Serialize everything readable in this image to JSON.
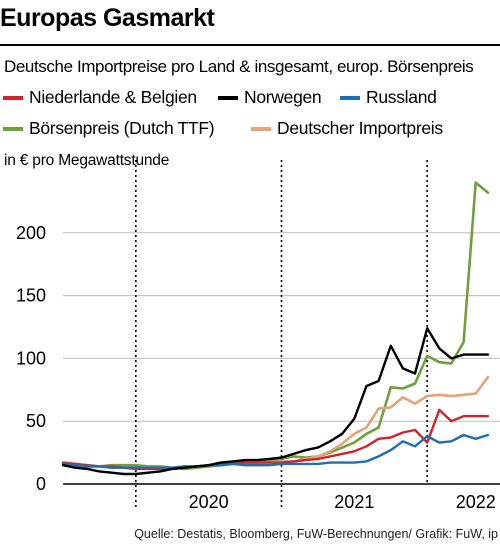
{
  "header": {
    "title": "Europas Gasmarkt",
    "subtitle": "Deutsche Importpreise pro Land & insgesamt, europ. Börsenpreis",
    "unit_label": "in € pro Megawattstunde",
    "source": "Quelle: Destatis, Bloomberg, FuW-Berechnungen/ Grafik: FuW, ip"
  },
  "legend": [
    {
      "label": "Niederlande & Belgien",
      "color": "#d2232a"
    },
    {
      "label": "Norwegen",
      "color": "#000000"
    },
    {
      "label": "Russland",
      "color": "#1b6fb3"
    },
    {
      "label": "Börsenpreis (Dutch TTF)",
      "color": "#6fa03c"
    },
    {
      "label": "Deutscher Importpreis",
      "color": "#e7a37a"
    }
  ],
  "chart_data": {
    "type": "line",
    "x_unit": "month",
    "xlim": [
      "2019-07",
      "2022-07"
    ],
    "ylim": [
      0,
      250
    ],
    "yticks": [
      0,
      50,
      100,
      150,
      200
    ],
    "xtick_labels": [
      "2020",
      "2021",
      "2022"
    ],
    "year_dividers": [
      "2020-01",
      "2021-01",
      "2022-01"
    ],
    "grid": "horizontal",
    "series": [
      {
        "name": "Börsenpreis (Dutch TTF)",
        "color": "#6fa03c",
        "width": 2.6,
        "x": [
          "2019-07",
          "2019-08",
          "2019-09",
          "2019-10",
          "2019-11",
          "2019-12",
          "2020-01",
          "2020-02",
          "2020-03",
          "2020-04",
          "2020-05",
          "2020-06",
          "2020-07",
          "2020-08",
          "2020-09",
          "2020-10",
          "2020-11",
          "2020-12",
          "2021-01",
          "2021-02",
          "2021-03",
          "2021-04",
          "2021-05",
          "2021-06",
          "2021-07",
          "2021-08",
          "2021-09",
          "2021-10",
          "2021-11",
          "2021-12",
          "2022-01",
          "2022-02",
          "2022-03",
          "2022-04",
          "2022-05",
          "2022-06"
        ],
        "y": [
          16,
          15,
          14,
          14,
          15,
          15,
          15,
          14,
          14,
          13,
          12,
          13,
          14,
          15,
          16,
          16,
          17,
          18,
          20,
          22,
          21,
          22,
          25,
          29,
          33,
          40,
          45,
          77,
          76,
          80,
          102,
          97,
          96,
          113,
          240,
          232
        ]
      },
      {
        "name": "Deutscher Importpreis",
        "color": "#e7a37a",
        "width": 2.6,
        "x": [
          "2019-07",
          "2019-08",
          "2019-09",
          "2019-10",
          "2019-11",
          "2019-12",
          "2020-01",
          "2020-02",
          "2020-03",
          "2020-04",
          "2020-05",
          "2020-06",
          "2020-07",
          "2020-08",
          "2020-09",
          "2020-10",
          "2020-11",
          "2020-12",
          "2021-01",
          "2021-02",
          "2021-03",
          "2021-04",
          "2021-05",
          "2021-06",
          "2021-07",
          "2021-08",
          "2021-09",
          "2021-10",
          "2021-11",
          "2021-12",
          "2022-01",
          "2022-02",
          "2022-03",
          "2022-04",
          "2022-05",
          "2022-06"
        ],
        "y": [
          17,
          16,
          15,
          14,
          13,
          13,
          13,
          13,
          13,
          13,
          14,
          14,
          15,
          16,
          17,
          17,
          17,
          17,
          18,
          18,
          20,
          22,
          26,
          32,
          40,
          45,
          60,
          61,
          69,
          64,
          70,
          71,
          70,
          71,
          72,
          85
        ]
      },
      {
        "name": "Niederlande & Belgien",
        "color": "#d2232a",
        "width": 2.4,
        "x": [
          "2019-07",
          "2019-08",
          "2019-09",
          "2019-10",
          "2019-11",
          "2019-12",
          "2020-01",
          "2020-02",
          "2020-03",
          "2020-04",
          "2020-05",
          "2020-06",
          "2020-07",
          "2020-08",
          "2020-09",
          "2020-10",
          "2020-11",
          "2020-12",
          "2021-01",
          "2021-02",
          "2021-03",
          "2021-04",
          "2021-05",
          "2021-06",
          "2021-07",
          "2021-08",
          "2021-09",
          "2021-10",
          "2021-11",
          "2021-12",
          "2022-01",
          "2022-02",
          "2022-03",
          "2022-04",
          "2022-05",
          "2022-06"
        ],
        "y": [
          17,
          16,
          15,
          14,
          14,
          13,
          12,
          12,
          12,
          12,
          13,
          14,
          15,
          16,
          16,
          17,
          17,
          17,
          17,
          18,
          19,
          20,
          22,
          24,
          26,
          30,
          36,
          37,
          41,
          43,
          33,
          59,
          50,
          54,
          54,
          54
        ]
      },
      {
        "name": "Russland",
        "color": "#1b6fb3",
        "width": 2.4,
        "x": [
          "2019-07",
          "2019-08",
          "2019-09",
          "2019-10",
          "2019-11",
          "2019-12",
          "2020-01",
          "2020-02",
          "2020-03",
          "2020-04",
          "2020-05",
          "2020-06",
          "2020-07",
          "2020-08",
          "2020-09",
          "2020-10",
          "2020-11",
          "2020-12",
          "2021-01",
          "2021-02",
          "2021-03",
          "2021-04",
          "2021-05",
          "2021-06",
          "2021-07",
          "2021-08",
          "2021-09",
          "2021-10",
          "2021-11",
          "2021-12",
          "2022-01",
          "2022-02",
          "2022-03",
          "2022-04",
          "2022-05",
          "2022-06"
        ],
        "y": [
          16,
          15,
          14,
          14,
          13,
          13,
          13,
          13,
          13,
          13,
          14,
          14,
          15,
          15,
          16,
          15,
          15,
          15,
          16,
          16,
          16,
          16,
          17,
          17,
          17,
          18,
          22,
          27,
          34,
          30,
          38,
          33,
          34,
          39,
          36,
          39
        ]
      },
      {
        "name": "Norwegen",
        "color": "#000000",
        "width": 2.4,
        "x": [
          "2019-07",
          "2019-08",
          "2019-09",
          "2019-10",
          "2019-11",
          "2019-12",
          "2020-01",
          "2020-02",
          "2020-03",
          "2020-04",
          "2020-05",
          "2020-06",
          "2020-07",
          "2020-08",
          "2020-09",
          "2020-10",
          "2020-11",
          "2020-12",
          "2021-01",
          "2021-02",
          "2021-03",
          "2021-04",
          "2021-05",
          "2021-06",
          "2021-07",
          "2021-08",
          "2021-09",
          "2021-10",
          "2021-11",
          "2021-12",
          "2022-01",
          "2022-02",
          "2022-03",
          "2022-04",
          "2022-05",
          "2022-06"
        ],
        "y": [
          15,
          13,
          12,
          10,
          9,
          8,
          8,
          9,
          10,
          12,
          13,
          14,
          15,
          17,
          18,
          19,
          19,
          20,
          21,
          24,
          27,
          29,
          34,
          40,
          52,
          78,
          82,
          110,
          92,
          88,
          124,
          108,
          100,
          103,
          103,
          103
        ]
      }
    ]
  }
}
